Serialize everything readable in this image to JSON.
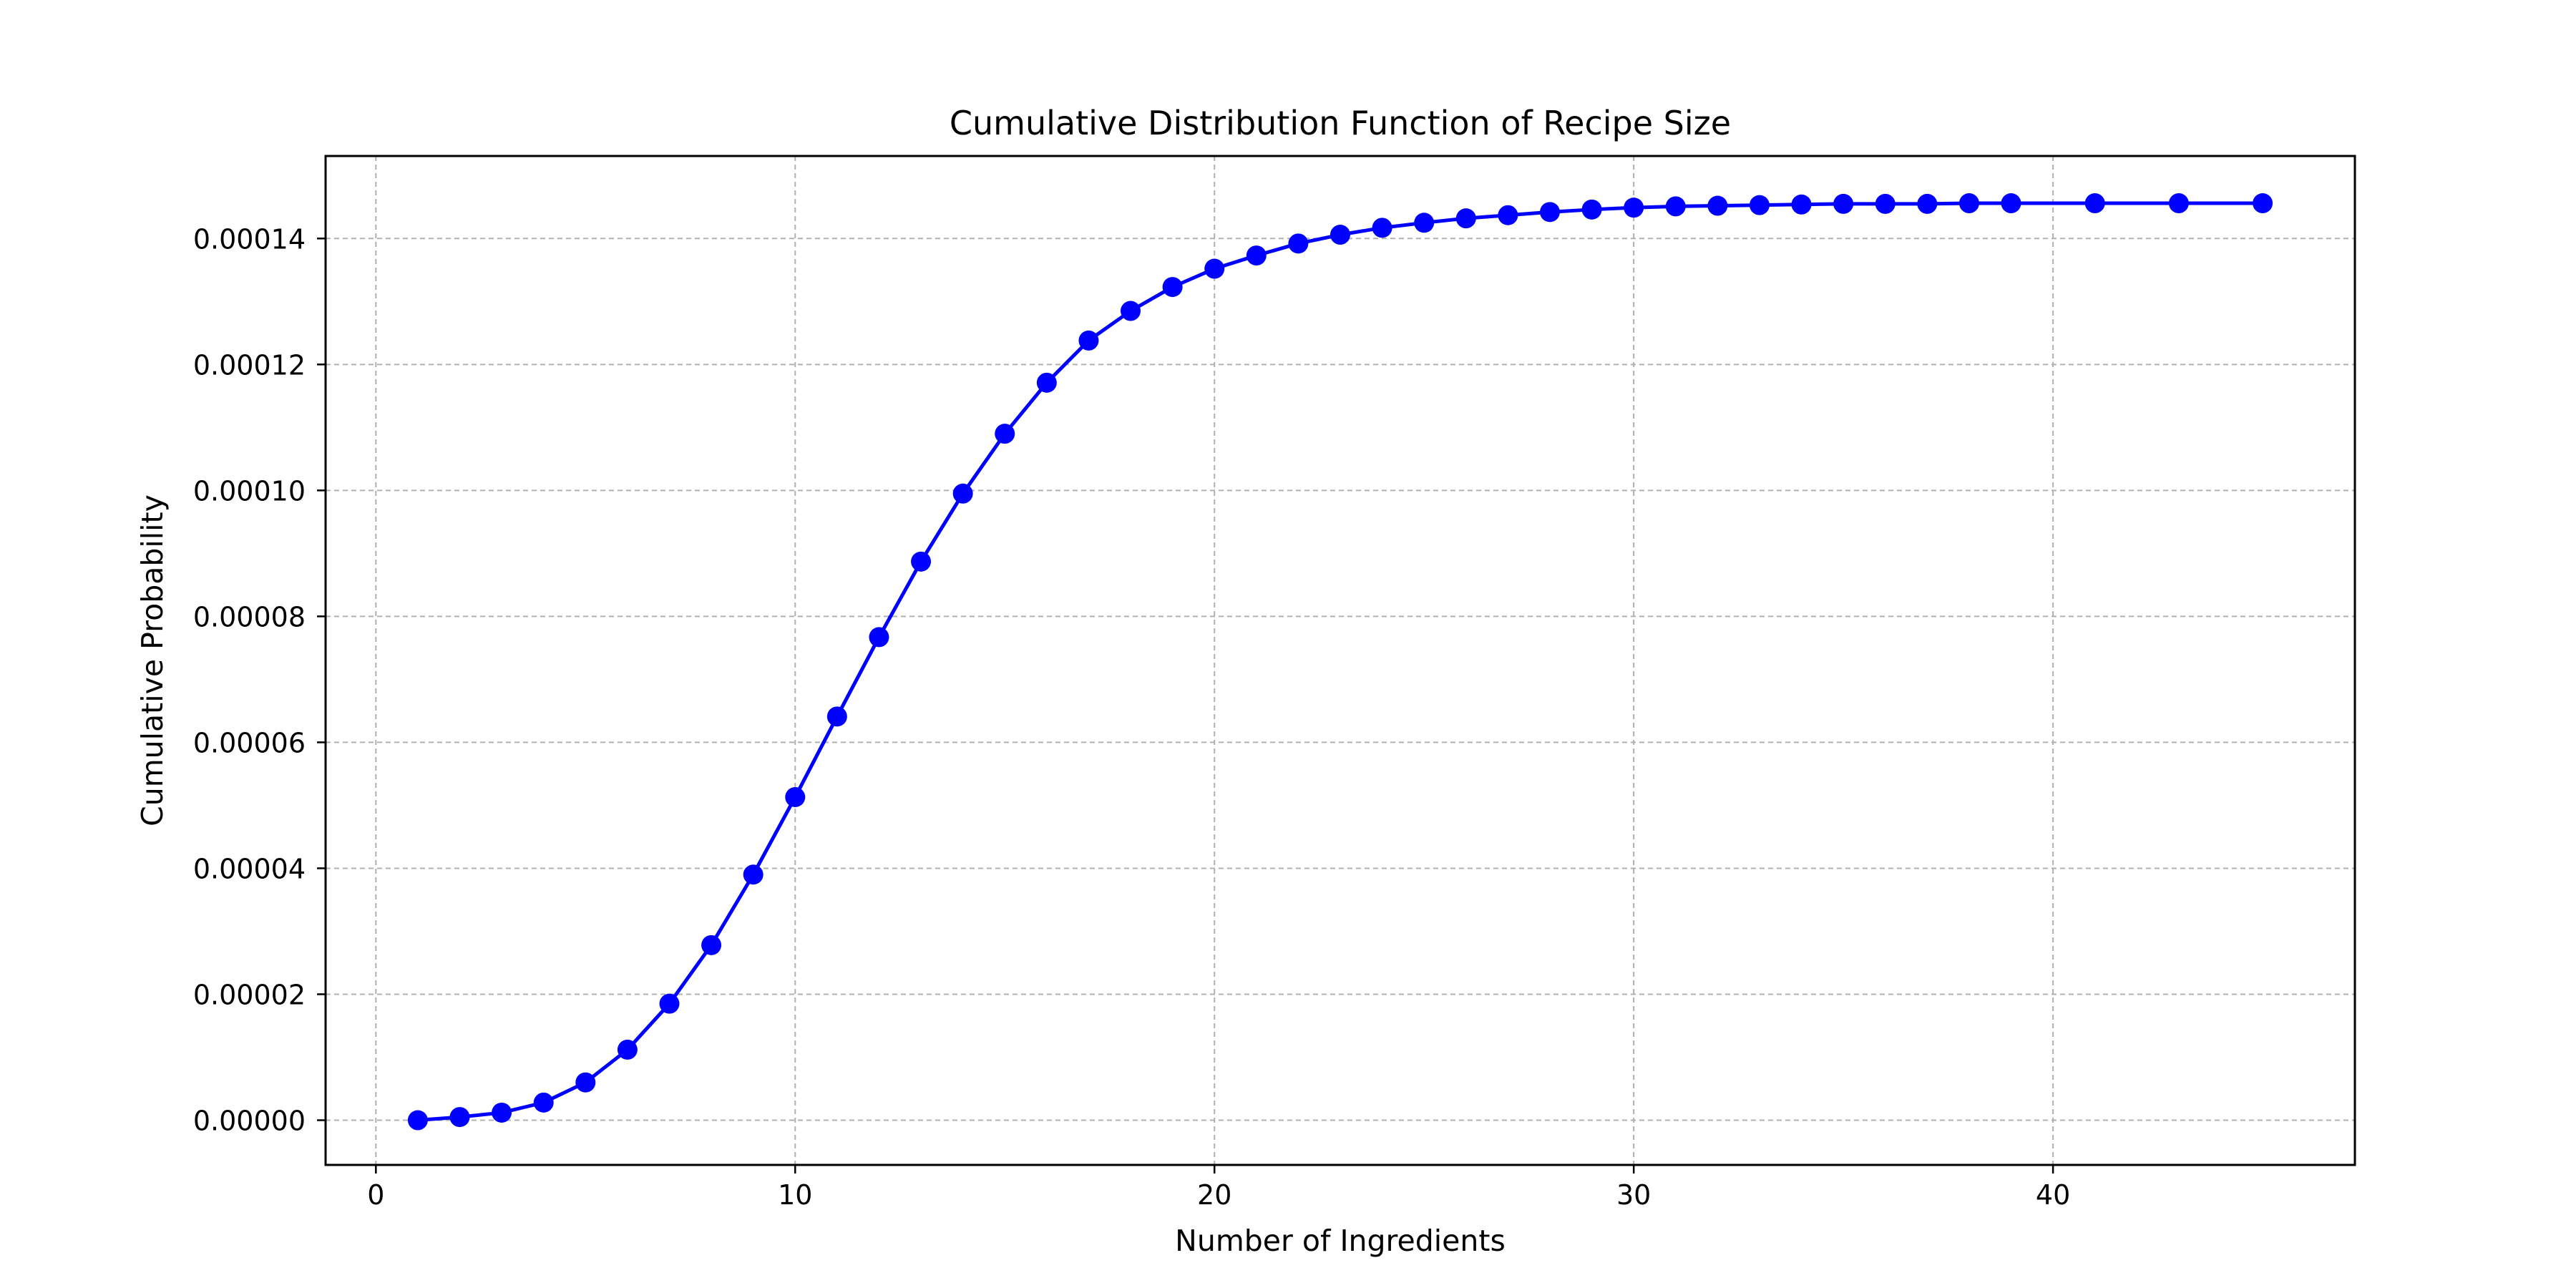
{
  "chart_data": {
    "type": "line",
    "title": "Cumulative Distribution Function of Recipe Size",
    "xlabel": "Number of Ingredients",
    "ylabel": "Cumulative Probability",
    "xlim": [
      -1.2,
      47.2
    ],
    "ylim": [
      -7.1e-06,
      0.0001531
    ],
    "xticks": [
      0,
      10,
      20,
      30,
      40
    ],
    "xtick_labels": [
      "0",
      "10",
      "20",
      "30",
      "40"
    ],
    "yticks": [
      0,
      2e-05,
      4e-05,
      6e-05,
      8e-05,
      0.0001,
      0.00012,
      0.00014
    ],
    "ytick_labels": [
      "0.00000",
      "0.00002",
      "0.00004",
      "0.00006",
      "0.00008",
      "0.00010",
      "0.00012",
      "0.00014"
    ],
    "grid": true,
    "grid_style": "dashed",
    "color": "#0000ff",
    "marker": "circle",
    "series": [
      {
        "x": [
          1,
          2,
          3,
          4,
          5,
          6,
          7,
          8,
          9,
          10,
          11,
          12,
          13,
          14,
          15,
          16,
          17,
          18,
          19,
          20,
          21,
          22,
          23,
          24,
          25,
          26,
          27,
          28,
          29,
          30,
          31,
          32,
          33,
          34,
          35,
          36,
          37,
          38,
          39,
          41,
          43,
          45
        ],
        "y": [
          0.0,
          5e-07,
          1.2e-06,
          2.8e-06,
          6e-06,
          1.12e-05,
          1.85e-05,
          2.78e-05,
          3.9e-05,
          5.13e-05,
          6.41e-05,
          7.67e-05,
          8.87e-05,
          9.95e-05,
          0.000109,
          0.0001171,
          0.0001238,
          0.0001285,
          0.0001323,
          0.0001352,
          0.0001373,
          0.0001392,
          0.0001406,
          0.0001417,
          0.0001425,
          0.0001432,
          0.0001437,
          0.0001442,
          0.0001446,
          0.0001449,
          0.0001451,
          0.0001452,
          0.0001453,
          0.0001454,
          0.0001455,
          0.0001455,
          0.0001455,
          0.0001456,
          0.0001456,
          0.0001456,
          0.0001456,
          0.0001456
        ]
      }
    ]
  }
}
